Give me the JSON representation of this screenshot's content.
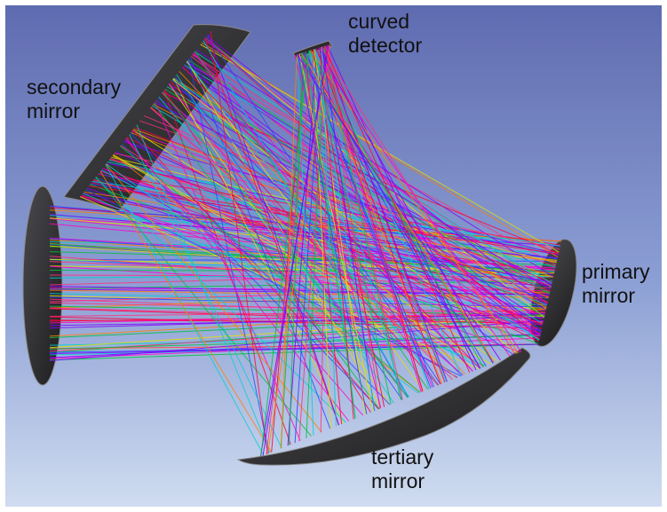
{
  "labels": {
    "secondary_mirror": "secondary\nmirror",
    "curved_detector": "curved\ndetector",
    "primary_mirror": "primary\nmirror",
    "tertiary_mirror": "tertiary\nmirror"
  },
  "colors": {
    "background_top": "#5f6bb0",
    "background_bottom": "#cfdcf0",
    "mirror_fill": "#2b2b2d",
    "mirror_edge": "#8a8a8c",
    "ray_colors": [
      "#ff0040",
      "#ff00cc",
      "#3040ff",
      "#00c040",
      "#ff8000",
      "#00d0d0",
      "#8000ff",
      "#e0e000",
      "#ff3080"
    ]
  },
  "icons": {
    "secondary_mirror": "secondary-mirror-shape",
    "primary_mirror": "primary-mirror-shape",
    "tertiary_mirror": "tertiary-mirror-shape",
    "curved_detector": "curved-detector-shape"
  }
}
